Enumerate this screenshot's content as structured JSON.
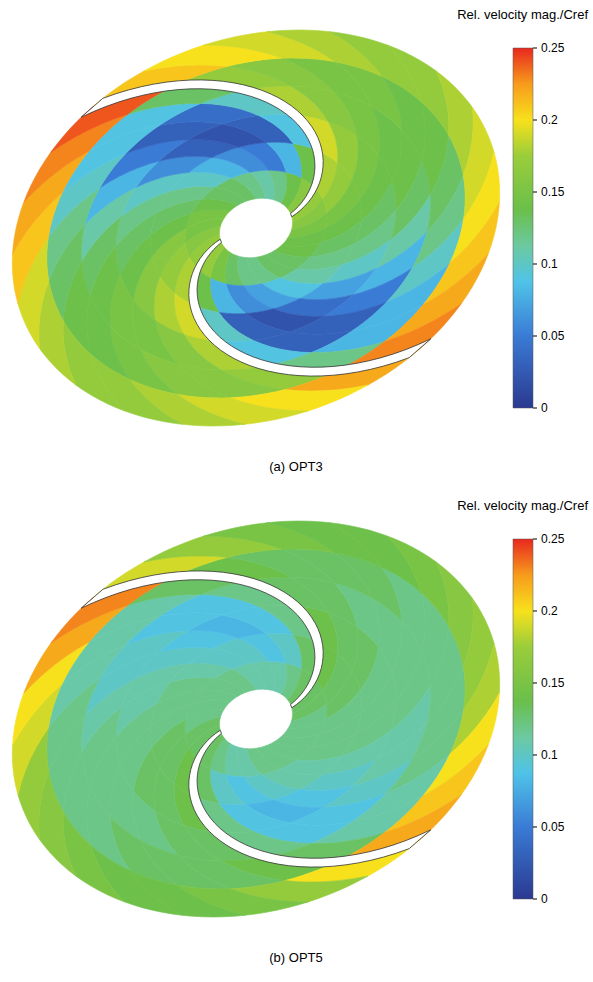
{
  "chart_data": [
    {
      "type": "contour",
      "title": "(a) OPT3",
      "colorbar": {
        "title": "Rel. velocity mag./Cref",
        "range": [
          0,
          0.25
        ],
        "ticks": [
          0,
          0.05,
          0.1,
          0.15,
          0.2,
          0.25
        ]
      },
      "cells": [
        [
          0.17,
          0.16,
          0.15,
          0.14,
          0.14,
          0.13,
          0.13,
          0.12,
          0.12,
          0.13,
          0.15,
          0.17,
          0.17,
          0.16,
          0.15,
          0.15,
          0.14,
          0.13,
          0.13,
          0.12,
          0.11,
          0.12,
          0.14,
          0.16
        ],
        [
          0.18,
          0.17,
          0.15,
          0.14,
          0.13,
          0.12,
          0.11,
          0.09,
          0.07,
          0.06,
          0.08,
          0.14,
          0.18,
          0.17,
          0.16,
          0.14,
          0.13,
          0.12,
          0.1,
          0.08,
          0.06,
          0.05,
          0.08,
          0.14
        ],
        [
          0.19,
          0.17,
          0.15,
          0.14,
          0.13,
          0.12,
          0.1,
          0.07,
          0.04,
          0.02,
          0.03,
          0.1,
          0.19,
          0.18,
          0.16,
          0.14,
          0.13,
          0.12,
          0.1,
          0.06,
          0.03,
          0.02,
          0.03,
          0.09
        ],
        [
          0.18,
          0.16,
          0.15,
          0.14,
          0.14,
          0.13,
          0.11,
          0.08,
          0.05,
          0.03,
          0.03,
          0.09,
          0.18,
          0.16,
          0.15,
          0.15,
          0.14,
          0.13,
          0.11,
          0.08,
          0.05,
          0.03,
          0.04,
          0.1
        ],
        [
          0.17,
          0.16,
          0.15,
          0.15,
          0.14,
          0.14,
          0.13,
          0.12,
          0.1,
          0.08,
          0.08,
          0.12,
          0.17,
          0.16,
          0.16,
          0.15,
          0.14,
          0.14,
          0.13,
          0.12,
          0.1,
          0.09,
          0.09,
          0.13
        ],
        [
          0.21,
          0.2,
          0.19,
          0.18,
          0.17,
          0.17,
          0.18,
          0.19,
          0.2,
          0.21,
          0.22,
          0.23,
          0.22,
          0.2,
          0.19,
          0.18,
          0.17,
          0.17,
          0.18,
          0.19,
          0.21,
          0.22,
          0.23,
          0.24
        ]
      ]
    },
    {
      "type": "contour",
      "title": "(b) OPT5",
      "colorbar": {
        "title": "Rel. velocity mag./Cref",
        "range": [
          0,
          0.25
        ],
        "ticks": [
          0,
          0.05,
          0.1,
          0.15,
          0.2,
          0.25
        ]
      },
      "cells": [
        [
          0.13,
          0.13,
          0.12,
          0.12,
          0.12,
          0.12,
          0.12,
          0.12,
          0.11,
          0.11,
          0.12,
          0.13,
          0.13,
          0.13,
          0.12,
          0.12,
          0.12,
          0.12,
          0.12,
          0.11,
          0.11,
          0.11,
          0.12,
          0.13
        ],
        [
          0.14,
          0.13,
          0.13,
          0.12,
          0.12,
          0.12,
          0.11,
          0.11,
          0.1,
          0.09,
          0.1,
          0.13,
          0.14,
          0.13,
          0.13,
          0.12,
          0.12,
          0.12,
          0.11,
          0.1,
          0.1,
          0.09,
          0.1,
          0.13
        ],
        [
          0.14,
          0.13,
          0.13,
          0.12,
          0.12,
          0.12,
          0.11,
          0.1,
          0.09,
          0.08,
          0.09,
          0.12,
          0.14,
          0.13,
          0.13,
          0.12,
          0.12,
          0.11,
          0.11,
          0.1,
          0.09,
          0.08,
          0.09,
          0.12
        ],
        [
          0.13,
          0.13,
          0.12,
          0.12,
          0.12,
          0.12,
          0.11,
          0.11,
          0.1,
          0.09,
          0.09,
          0.12,
          0.13,
          0.13,
          0.12,
          0.12,
          0.12,
          0.12,
          0.11,
          0.1,
          0.1,
          0.09,
          0.09,
          0.12
        ],
        [
          0.14,
          0.13,
          0.13,
          0.13,
          0.12,
          0.12,
          0.12,
          0.12,
          0.12,
          0.11,
          0.11,
          0.13,
          0.14,
          0.13,
          0.13,
          0.13,
          0.12,
          0.12,
          0.12,
          0.12,
          0.11,
          0.11,
          0.11,
          0.13
        ],
        [
          0.19,
          0.17,
          0.15,
          0.14,
          0.14,
          0.15,
          0.16,
          0.17,
          0.18,
          0.2,
          0.21,
          0.22,
          0.2,
          0.17,
          0.15,
          0.14,
          0.14,
          0.15,
          0.16,
          0.17,
          0.19,
          0.2,
          0.22,
          0.23
        ]
      ]
    }
  ]
}
